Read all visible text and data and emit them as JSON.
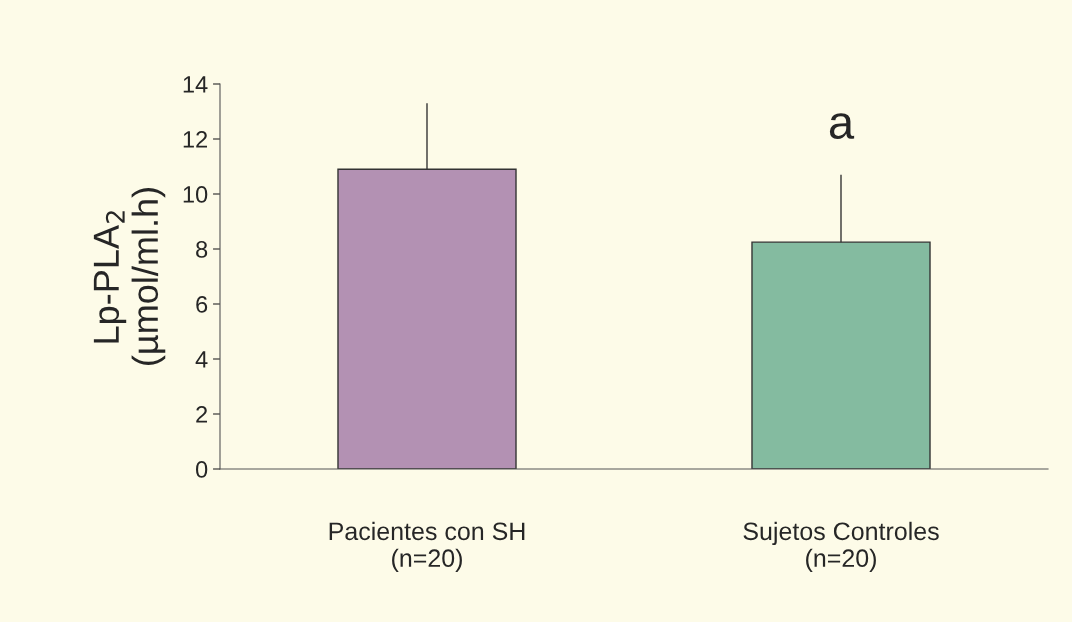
{
  "chart_data": {
    "type": "bar",
    "ylabel": "Lp-PLA$_{2}$\n(µmol/ml.h)",
    "categories": [
      "Pacientes con SH\n(n=20)",
      "Sujetos Controles\n(n=20)"
    ],
    "values": [
      10.9,
      8.25
    ],
    "colors": [
      "#b98bb9",
      "#7bc4a0"
    ],
    "errors": [
      [
        10.9,
        13.3
      ],
      [
        8.25,
        10.7
      ]
    ],
    "annotations": [
      "a"
    ],
    "ylim": [
      0,
      14
    ],
    "yticks": [
      0,
      2,
      4,
      6,
      8,
      10,
      12,
      14
    ],
    "grid": false,
    "legend": false
  }
}
